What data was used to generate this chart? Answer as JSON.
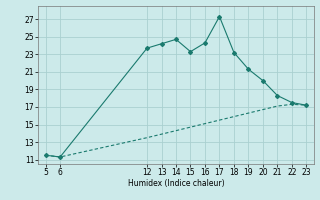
{
  "xlabel": "Humidex (Indice chaleur)",
  "xlim": [
    4.5,
    23.5
  ],
  "ylim": [
    10.5,
    28.5
  ],
  "xticks": [
    5,
    6,
    12,
    13,
    14,
    15,
    16,
    17,
    18,
    19,
    20,
    21,
    22,
    23
  ],
  "yticks": [
    11,
    13,
    15,
    17,
    19,
    21,
    23,
    25,
    27
  ],
  "bg_color": "#cceaea",
  "grid_color": "#aad0d0",
  "line_color": "#1a7a6e",
  "line1_x": [
    5,
    6,
    12,
    13,
    14,
    15,
    16,
    17,
    18,
    19,
    20,
    21,
    22,
    23
  ],
  "line1_y": [
    11.5,
    11.3,
    23.7,
    24.2,
    24.7,
    23.3,
    24.3,
    27.3,
    23.2,
    21.3,
    20.0,
    18.3,
    17.5,
    17.2
  ],
  "line2_x": [
    5,
    6,
    12,
    13,
    14,
    15,
    16,
    17,
    18,
    19,
    20,
    21,
    22,
    23
  ],
  "line2_y": [
    11.5,
    11.3,
    13.5,
    13.9,
    14.3,
    14.7,
    15.1,
    15.5,
    15.9,
    16.3,
    16.7,
    17.1,
    17.3,
    17.2
  ]
}
